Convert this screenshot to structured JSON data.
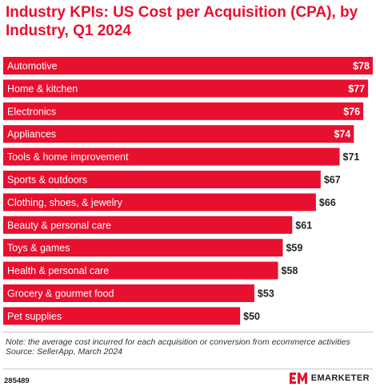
{
  "title": "Industry KPIs: US Cost per Acquisition (CPA), by Industry, Q1 2024",
  "chart_data": {
    "type": "bar",
    "orientation": "horizontal",
    "categories": [
      "Automotive",
      "Home & kitchen",
      "Electronics",
      "Appliances",
      "Tools & home improvement",
      "Sports & outdoors",
      "Clothing, shoes, & jewelry",
      "Beauty & personal care",
      "Toys & games",
      "Health & personal care",
      "Grocery & gourmet food",
      "Pet supplies"
    ],
    "values": [
      78,
      77,
      76,
      74,
      71,
      67,
      66,
      61,
      59,
      58,
      53,
      50
    ],
    "value_labels": [
      "$78",
      "$77",
      "$76",
      "$74",
      "$71",
      "$67",
      "$66",
      "$61",
      "$59",
      "$58",
      "$53",
      "$50"
    ],
    "xlim": [
      0,
      78
    ],
    "bar_color": "#e8102f",
    "grid": false,
    "legend": "none"
  },
  "notes": {
    "note": "Note: the average cost incurred for each acquisition or conversion from ecommerce activities",
    "source": "Source: SellerApp, March 2024"
  },
  "footer": {
    "chart_id": "285489",
    "brand": "EMARKETER",
    "logo_color": "#e8102f"
  }
}
